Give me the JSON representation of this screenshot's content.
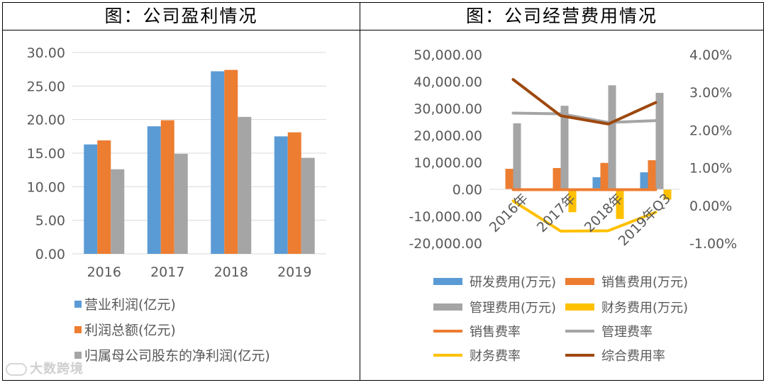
{
  "left_title": "图：公司盈利情况",
  "right_title": "图：公司经营费用情况",
  "watermark": "大数跨境",
  "colors": {
    "blue": "#5B9BD5",
    "orange": "#ED7D31",
    "gray": "#A5A5A5",
    "yellow": "#FFC000",
    "brown": "#9E480E",
    "grid": "#D9D9D9",
    "text": "#595959"
  },
  "chart_data": [
    {
      "type": "bar",
      "title": "图：公司盈利情况",
      "categories": [
        "2016",
        "2017",
        "2018",
        "2019"
      ],
      "ylim": [
        0,
        30
      ],
      "yticks": [
        "0.00",
        "5.00",
        "10.00",
        "15.00",
        "20.00",
        "25.00",
        "30.00"
      ],
      "series": [
        {
          "name": "营业利润(亿元)",
          "values": [
            16.3,
            19.0,
            27.2,
            17.5
          ]
        },
        {
          "name": "利润总额(亿元)",
          "values": [
            16.9,
            19.9,
            27.4,
            18.1
          ]
        },
        {
          "name": "归属母公司股东的净利润(亿元)",
          "values": [
            12.6,
            14.9,
            20.4,
            14.3
          ]
        }
      ],
      "legend_position": "bottom"
    },
    {
      "type": "bar",
      "title": "图：公司经营费用情况",
      "categories": [
        "2016年",
        "2017年",
        "2018年",
        "2019年Q3"
      ],
      "ylim": [
        -20000,
        50000
      ],
      "yticks": [
        "-20,000.00",
        "-10,000.00",
        "0.00",
        "10,000.00",
        "20,000.00",
        "30,000.00",
        "40,000.00",
        "50,000.00"
      ],
      "y2lim": [
        -0.01,
        0.04
      ],
      "y2ticks": [
        "-1.00%",
        "0.00%",
        "1.00%",
        "2.00%",
        "3.00%",
        "4.00%"
      ],
      "series": [
        {
          "name": "研发费用(万元)",
          "axis": "left",
          "kind": "bar",
          "values": [
            0,
            0,
            4500,
            6300
          ]
        },
        {
          "name": "销售费用(万元)",
          "axis": "left",
          "kind": "bar",
          "values": [
            7600,
            7900,
            9800,
            10800
          ]
        },
        {
          "name": "管理费用(万元)",
          "axis": "left",
          "kind": "bar",
          "values": [
            24500,
            31000,
            38600,
            35800
          ]
        },
        {
          "name": "财务费用(万元)",
          "axis": "left",
          "kind": "bar",
          "values": [
            -500,
            -8500,
            -11000,
            -3800
          ]
        },
        {
          "name": "销售费率",
          "axis": "right",
          "kind": "line",
          "values": [
            0.0042,
            0.0042,
            0.0042,
            0.0042
          ]
        },
        {
          "name": "管理费率",
          "axis": "right",
          "kind": "line",
          "values": [
            0.0245,
            0.0243,
            0.022,
            0.0225
          ]
        },
        {
          "name": "财务费率",
          "axis": "right",
          "kind": "line",
          "values": [
            0.0012,
            -0.0068,
            -0.0067,
            -0.0018
          ]
        },
        {
          "name": "综合费用率",
          "axis": "right",
          "kind": "line",
          "values": [
            0.0334,
            0.0238,
            0.0216,
            0.0273
          ]
        }
      ],
      "legend_position": "bottom"
    }
  ]
}
